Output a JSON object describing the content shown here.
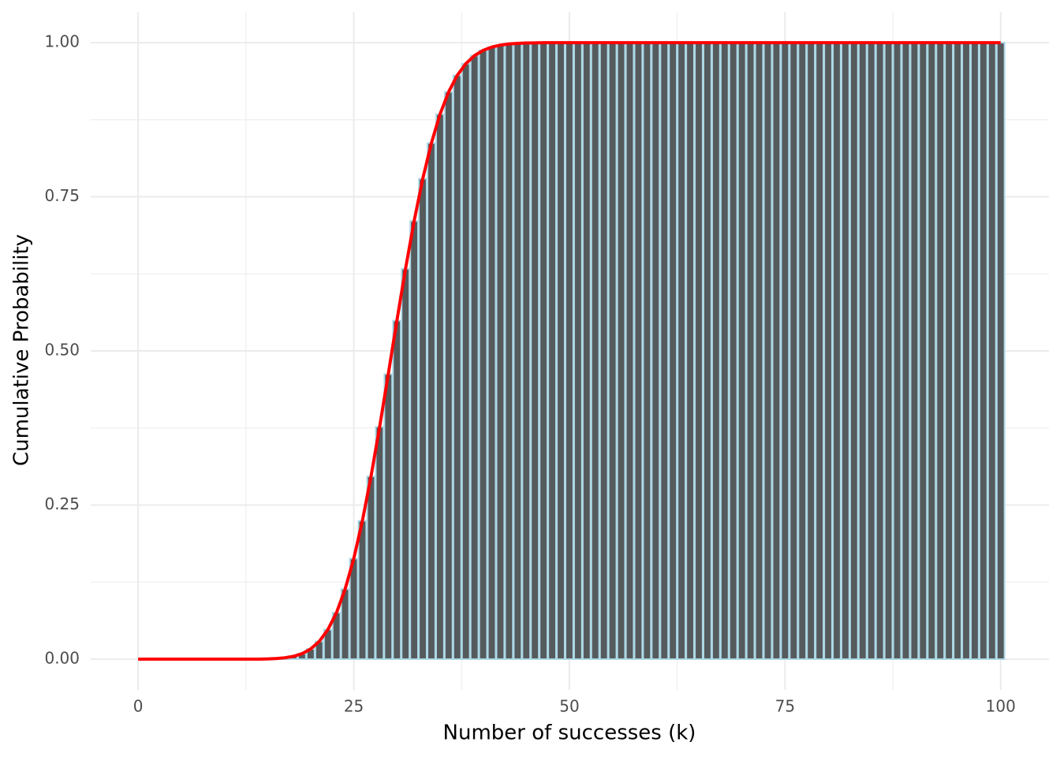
{
  "chart_data": {
    "type": "bar",
    "x_label": "Number of successes (k)",
    "y_label": "Cumulative Probability",
    "x": [
      0,
      1,
      2,
      3,
      4,
      5,
      6,
      7,
      8,
      9,
      10,
      11,
      12,
      13,
      14,
      15,
      16,
      17,
      18,
      19,
      20,
      21,
      22,
      23,
      24,
      25,
      26,
      27,
      28,
      29,
      30,
      31,
      32,
      33,
      34,
      35,
      36,
      37,
      38,
      39,
      40,
      41,
      42,
      43,
      44,
      45,
      46,
      47,
      48,
      49,
      50,
      51,
      52,
      53,
      54,
      55,
      56,
      57,
      58,
      59,
      60,
      61,
      62,
      63,
      64,
      65,
      66,
      67,
      68,
      69,
      70,
      71,
      72,
      73,
      74,
      75,
      76,
      77,
      78,
      79,
      80,
      81,
      82,
      83,
      84,
      85,
      86,
      87,
      88,
      89,
      90,
      91,
      92,
      93,
      94,
      95,
      96,
      97,
      98,
      99,
      100
    ],
    "values": [
      0,
      0,
      0,
      0,
      0,
      0,
      0,
      0,
      0,
      0,
      0,
      0,
      0,
      0,
      0,
      0.0004,
      0.001,
      0.0022,
      0.0045,
      0.0089,
      0.0165,
      0.0288,
      0.0479,
      0.0755,
      0.1136,
      0.1631,
      0.2244,
      0.2964,
      0.3768,
      0.4623,
      0.5491,
      0.6331,
      0.7107,
      0.7793,
      0.8371,
      0.8839,
      0.9201,
      0.947,
      0.966,
      0.979,
      0.9875,
      0.9928,
      0.996,
      0.9979,
      0.9989,
      0.9995,
      0.9997,
      0.9999,
      1,
      1,
      1,
      1,
      1,
      1,
      1,
      1,
      1,
      1,
      1,
      1,
      1,
      1,
      1,
      1,
      1,
      1,
      1,
      1,
      1,
      1,
      1,
      1,
      1,
      1,
      1,
      1,
      1,
      1,
      1,
      1,
      1,
      1,
      1,
      1,
      1,
      1,
      1,
      1,
      1,
      1,
      1,
      1,
      1,
      1,
      1,
      1,
      1,
      1,
      1,
      1,
      1
    ],
    "color": "#555a5c",
    "edgecolor": "#add8e6",
    "line_color": "#ff0000",
    "xlim": [
      -5.5,
      105.6
    ],
    "ylim": [
      -0.05,
      1.05
    ],
    "xticks": [
      0,
      25,
      50,
      75,
      100
    ],
    "yticks": [
      {
        "value": 0,
        "label": "0.00"
      },
      {
        "value": 0.25,
        "label": "0.25"
      },
      {
        "value": 0.5,
        "label": "0.50"
      },
      {
        "value": 0.75,
        "label": "0.75"
      },
      {
        "value": 1,
        "label": "1.00"
      }
    ],
    "grid": true
  }
}
